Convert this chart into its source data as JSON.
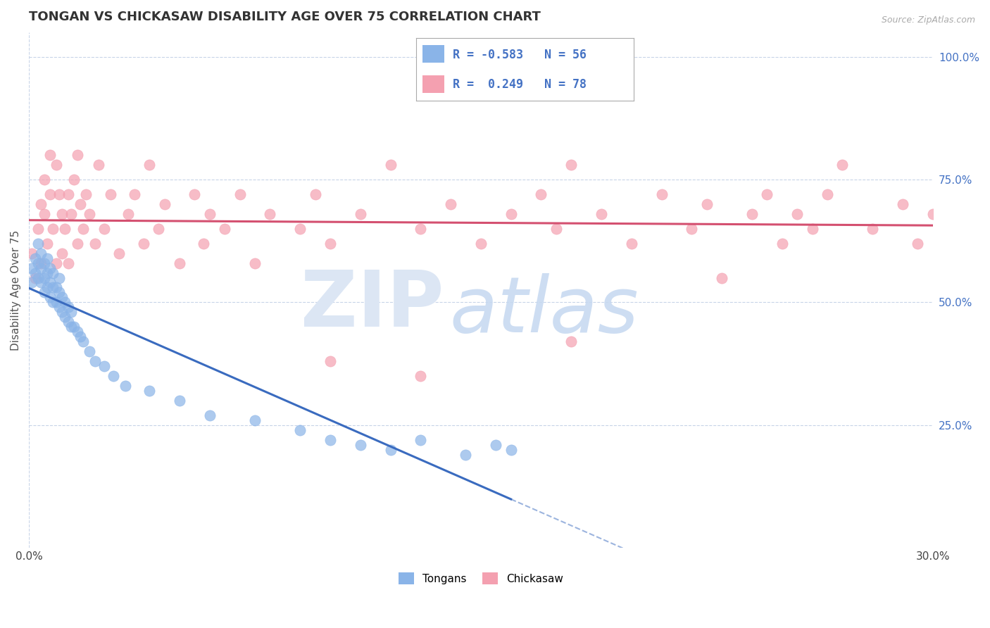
{
  "title": "TONGAN VS CHICKASAW DISABILITY AGE OVER 75 CORRELATION CHART",
  "source": "Source: ZipAtlas.com",
  "ylabel": "Disability Age Over 75",
  "legend_labels": [
    "Tongans",
    "Chickasaw"
  ],
  "legend_r": [
    "-0.583",
    "0.249"
  ],
  "legend_n": [
    "56",
    "78"
  ],
  "tongan_color": "#8ab4e8",
  "chickasaw_color": "#f4a0b0",
  "tongan_line_color": "#3a6bbf",
  "chickasaw_line_color": "#d45070",
  "background_color": "#ffffff",
  "grid_color": "#c8d4e8",
  "xlim": [
    0.0,
    0.3
  ],
  "ylim": [
    0.0,
    1.05
  ],
  "title_fontsize": 13,
  "label_fontsize": 11,
  "tick_fontsize": 11,
  "tongan_x": [
    0.001,
    0.001,
    0.002,
    0.002,
    0.003,
    0.003,
    0.003,
    0.004,
    0.004,
    0.004,
    0.005,
    0.005,
    0.005,
    0.006,
    0.006,
    0.006,
    0.007,
    0.007,
    0.007,
    0.008,
    0.008,
    0.008,
    0.009,
    0.009,
    0.01,
    0.01,
    0.01,
    0.011,
    0.011,
    0.012,
    0.012,
    0.013,
    0.013,
    0.014,
    0.014,
    0.015,
    0.016,
    0.017,
    0.018,
    0.02,
    0.022,
    0.025,
    0.028,
    0.032,
    0.04,
    0.05,
    0.06,
    0.075,
    0.09,
    0.1,
    0.11,
    0.12,
    0.13,
    0.145,
    0.155,
    0.16
  ],
  "tongan_y": [
    0.54,
    0.57,
    0.56,
    0.59,
    0.55,
    0.58,
    0.62,
    0.54,
    0.57,
    0.6,
    0.52,
    0.55,
    0.58,
    0.53,
    0.56,
    0.59,
    0.51,
    0.54,
    0.57,
    0.5,
    0.53,
    0.56,
    0.5,
    0.53,
    0.49,
    0.52,
    0.55,
    0.48,
    0.51,
    0.47,
    0.5,
    0.46,
    0.49,
    0.45,
    0.48,
    0.45,
    0.44,
    0.43,
    0.42,
    0.4,
    0.38,
    0.37,
    0.35,
    0.33,
    0.32,
    0.3,
    0.27,
    0.26,
    0.24,
    0.22,
    0.21,
    0.2,
    0.22,
    0.19,
    0.21,
    0.2
  ],
  "chickasaw_x": [
    0.001,
    0.002,
    0.003,
    0.004,
    0.004,
    0.005,
    0.005,
    0.006,
    0.007,
    0.007,
    0.008,
    0.009,
    0.009,
    0.01,
    0.011,
    0.011,
    0.012,
    0.013,
    0.013,
    0.014,
    0.015,
    0.016,
    0.016,
    0.017,
    0.018,
    0.019,
    0.02,
    0.022,
    0.023,
    0.025,
    0.027,
    0.03,
    0.033,
    0.035,
    0.038,
    0.04,
    0.043,
    0.045,
    0.05,
    0.055,
    0.058,
    0.06,
    0.065,
    0.07,
    0.075,
    0.08,
    0.09,
    0.095,
    0.1,
    0.11,
    0.12,
    0.13,
    0.14,
    0.15,
    0.16,
    0.17,
    0.175,
    0.18,
    0.19,
    0.2,
    0.21,
    0.22,
    0.225,
    0.23,
    0.24,
    0.245,
    0.25,
    0.255,
    0.26,
    0.265,
    0.27,
    0.28,
    0.29,
    0.295,
    0.3,
    0.1,
    0.13,
    0.18
  ],
  "chickasaw_y": [
    0.6,
    0.55,
    0.65,
    0.7,
    0.58,
    0.68,
    0.75,
    0.62,
    0.8,
    0.72,
    0.65,
    0.78,
    0.58,
    0.72,
    0.68,
    0.6,
    0.65,
    0.72,
    0.58,
    0.68,
    0.75,
    0.62,
    0.8,
    0.7,
    0.65,
    0.72,
    0.68,
    0.62,
    0.78,
    0.65,
    0.72,
    0.6,
    0.68,
    0.72,
    0.62,
    0.78,
    0.65,
    0.7,
    0.58,
    0.72,
    0.62,
    0.68,
    0.65,
    0.72,
    0.58,
    0.68,
    0.65,
    0.72,
    0.62,
    0.68,
    0.78,
    0.65,
    0.7,
    0.62,
    0.68,
    0.72,
    0.65,
    0.78,
    0.68,
    0.62,
    0.72,
    0.65,
    0.7,
    0.55,
    0.68,
    0.72,
    0.62,
    0.68,
    0.65,
    0.72,
    0.78,
    0.65,
    0.7,
    0.62,
    0.68,
    0.38,
    0.35,
    0.42
  ]
}
